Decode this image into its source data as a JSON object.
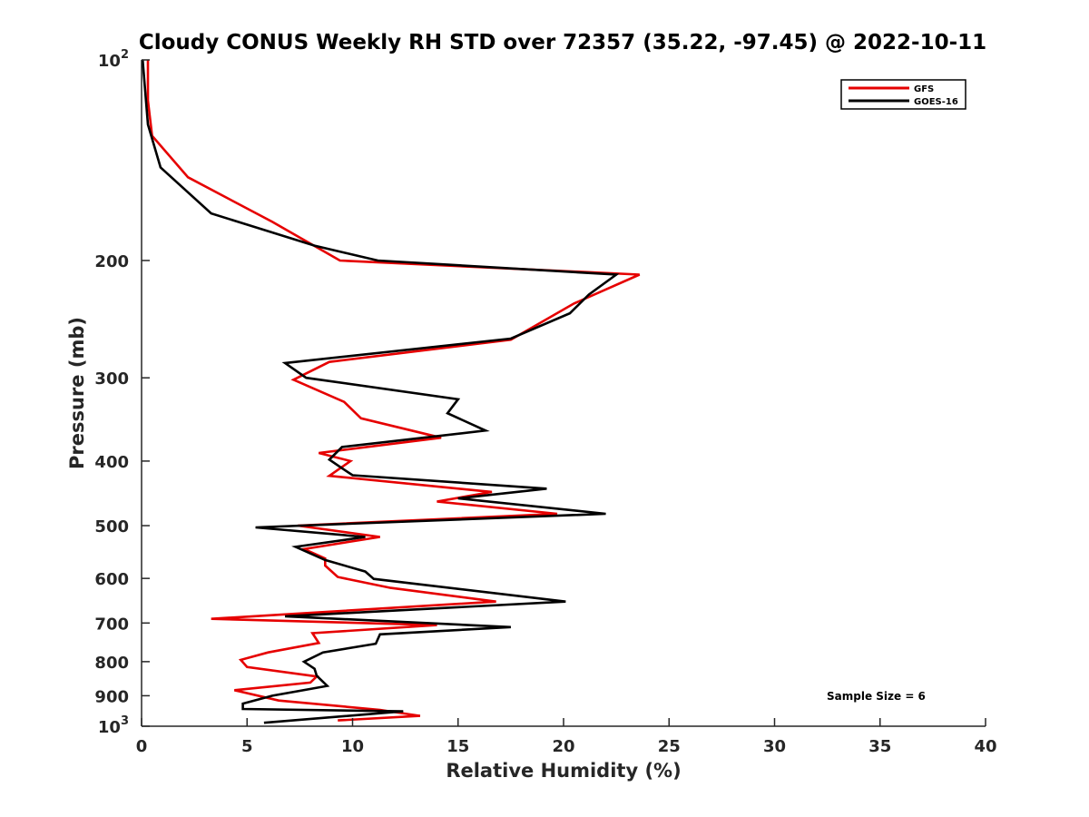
{
  "chart_data": {
    "type": "line",
    "title": "Cloudy CONUS Weekly RH STD over 72357 (35.22, -97.45) @ 2022-10-11",
    "xlabel": "Relative Humidity (%)",
    "ylabel": "Pressure (mb)",
    "xlim": [
      0,
      40
    ],
    "ylim": [
      100,
      1000
    ],
    "y_scale": "log",
    "y_reversed": true,
    "grid": false,
    "legend_position": "top-right",
    "x_ticks": [
      "0",
      "5",
      "10",
      "15",
      "20",
      "25",
      "30",
      "35",
      "40"
    ],
    "y_ticks": [
      {
        "value": 100,
        "base": "10",
        "exp": "2"
      },
      {
        "value": 200,
        "label": "200"
      },
      {
        "value": 300,
        "label": "300"
      },
      {
        "value": 400,
        "label": "400"
      },
      {
        "value": 500,
        "label": "500"
      },
      {
        "value": 600,
        "label": "600"
      },
      {
        "value": 700,
        "label": "700"
      },
      {
        "value": 800,
        "label": "800"
      },
      {
        "value": 900,
        "label": "900"
      },
      {
        "value": 1000,
        "base": "10",
        "exp": "3"
      }
    ],
    "annotation": "Sample Size = 6",
    "series": [
      {
        "name": "GFS",
        "color": "#e60000",
        "points": [
          [
            0.3,
            100
          ],
          [
            0.3,
            115
          ],
          [
            0.5,
            130
          ],
          [
            2.2,
            150
          ],
          [
            6.2,
            175
          ],
          [
            9.4,
            200
          ],
          [
            23.6,
            210
          ],
          [
            20.5,
            232
          ],
          [
            17.5,
            263
          ],
          [
            8.9,
            284
          ],
          [
            7.2,
            302
          ],
          [
            9.6,
            326
          ],
          [
            10.4,
            345
          ],
          [
            14.2,
            369
          ],
          [
            8.4,
            389
          ],
          [
            9.9,
            400
          ],
          [
            8.9,
            421
          ],
          [
            16.6,
            445
          ],
          [
            14.0,
            460
          ],
          [
            19.7,
            480
          ],
          [
            7.4,
            500
          ],
          [
            11.3,
            520
          ],
          [
            7.7,
            542
          ],
          [
            8.7,
            560
          ],
          [
            8.7,
            574
          ],
          [
            9.3,
            597
          ],
          [
            11.8,
            620
          ],
          [
            16.8,
            650
          ],
          [
            3.3,
            690
          ],
          [
            14.0,
            705
          ],
          [
            8.1,
            725
          ],
          [
            8.4,
            750
          ],
          [
            6.0,
            775
          ],
          [
            4.7,
            795
          ],
          [
            5.0,
            815
          ],
          [
            8.3,
            842
          ],
          [
            8.0,
            860
          ],
          [
            4.4,
            883
          ],
          [
            6.5,
            915
          ],
          [
            11.3,
            945
          ],
          [
            13.2,
            965
          ],
          [
            9.3,
            980
          ]
        ]
      },
      {
        "name": "GOES-16",
        "color": "#000000",
        "points": [
          [
            0.05,
            100
          ],
          [
            0.3,
            125
          ],
          [
            0.9,
            145
          ],
          [
            3.3,
            170
          ],
          [
            8.2,
            190
          ],
          [
            11.2,
            200
          ],
          [
            22.5,
            210
          ],
          [
            21.2,
            225
          ],
          [
            20.3,
            240
          ],
          [
            17.5,
            262
          ],
          [
            6.8,
            285
          ],
          [
            7.8,
            300
          ],
          [
            15.0,
            323
          ],
          [
            14.5,
            339
          ],
          [
            16.3,
            360
          ],
          [
            9.5,
            381
          ],
          [
            8.9,
            398
          ],
          [
            9.5,
            410
          ],
          [
            10.0,
            420
          ],
          [
            19.2,
            440
          ],
          [
            15.0,
            455
          ],
          [
            22.0,
            480
          ],
          [
            5.4,
            503
          ],
          [
            10.6,
            520
          ],
          [
            7.3,
            538
          ],
          [
            8.7,
            563
          ],
          [
            10.6,
            586
          ],
          [
            11.0,
            601
          ],
          [
            20.1,
            650
          ],
          [
            6.8,
            684
          ],
          [
            17.5,
            710
          ],
          [
            11.3,
            728
          ],
          [
            11.1,
            752
          ],
          [
            8.6,
            775
          ],
          [
            7.7,
            800
          ],
          [
            8.2,
            820
          ],
          [
            8.3,
            840
          ],
          [
            8.8,
            870
          ],
          [
            6.2,
            900
          ],
          [
            4.8,
            925
          ],
          [
            4.8,
            942
          ],
          [
            12.4,
            950
          ],
          [
            5.8,
            988
          ]
        ]
      }
    ]
  }
}
